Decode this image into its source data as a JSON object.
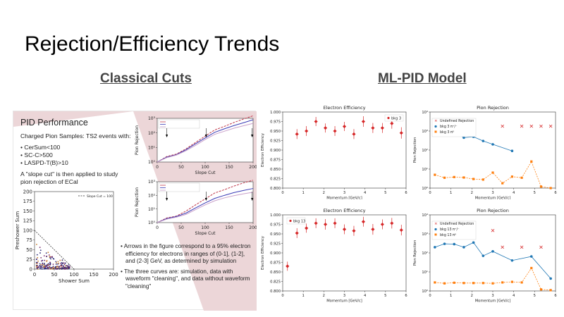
{
  "slide": {
    "title": "Rejection/Efficiency Trends",
    "left_heading": "Classical Cuts",
    "right_heading": "ML-PID Model"
  },
  "left": {
    "title": "PID Performance",
    "subtitle": "Charged Pion Samples: TS2 events with:",
    "cuts": [
      "CerSum<100",
      "SC-C>500",
      "LASPD-T(B)>10"
    ],
    "slope_text": "A \"slope cut\" is then applied to study pion rejection of ECal",
    "bullets": [
      "Arrows in the figure correspond to a 95% electron efficiency for electrons in ranges of (0-1], (1-2], and (2-3] GeV, as determined by simulation",
      "The three curves are: simulation, data with waveform \"cleaning\", and data without waveform \"cleaning\""
    ]
  },
  "chart_data": [
    {
      "type": "scatter",
      "xlabel": "Shower Sum",
      "ylabel": "Preshower Sum",
      "xticks": [
        "0",
        "50",
        "100",
        "150",
        "200"
      ],
      "yticks": [
        "0",
        "25",
        "50",
        "75",
        "100",
        "125",
        "150",
        "175",
        "200"
      ],
      "xlim": [
        0,
        200
      ],
      "ylim": [
        0,
        200
      ],
      "legend": [
        "Slope Cut = 100"
      ],
      "slope_cut": 100
    },
    {
      "type": "line",
      "xlabel": "Slope Cut",
      "ylabel": "Pion Rejection",
      "xticks": [
        "0",
        "50",
        "100",
        "150",
        "200"
      ],
      "yticks": [
        "10⁰",
        "10¹",
        "10²",
        "10³"
      ],
      "xlim": [
        0,
        200
      ],
      "scale": "log",
      "series": [
        {
          "color": "#c0394b",
          "style": "dashed",
          "x": [
            0,
            20,
            40,
            60,
            80,
            100,
            120,
            140,
            160,
            180,
            200
          ],
          "y": [
            1,
            2.4,
            3.5,
            8,
            22,
            60,
            160,
            280,
            520,
            900,
            1500
          ]
        },
        {
          "color": "#3a3ab5",
          "style": "solid",
          "x": [
            0,
            20,
            40,
            60,
            80,
            100,
            120,
            140,
            160,
            180,
            200
          ],
          "y": [
            1,
            2.2,
            3.2,
            7,
            18,
            45,
            110,
            190,
            320,
            500,
            800
          ]
        },
        {
          "color": "#c9a0c9",
          "style": "solid",
          "x": [
            0,
            20,
            40,
            60,
            80,
            100,
            120,
            140,
            160,
            180,
            200
          ],
          "y": [
            1,
            2.0,
            3.0,
            6,
            14,
            35,
            80,
            130,
            210,
            310,
            450
          ]
        }
      ]
    },
    {
      "type": "line",
      "xlabel": "Slope Cut",
      "ylabel": "Pion Rejection",
      "xticks": [
        "0",
        "50",
        "100",
        "150",
        "200"
      ],
      "yticks": [
        "10⁰",
        "10¹",
        "10²",
        "10³"
      ],
      "xlim": [
        0,
        200
      ],
      "scale": "log",
      "series": [
        {
          "color": "#c0394b",
          "style": "dashed",
          "x": [
            0,
            20,
            40,
            60,
            80,
            100,
            120,
            140,
            160,
            180,
            200
          ],
          "y": [
            1,
            2.2,
            3.0,
            7,
            20,
            55,
            150,
            260,
            480,
            820,
            1300
          ]
        },
        {
          "color": "#3a3ab5",
          "style": "solid",
          "x": [
            0,
            20,
            40,
            60,
            80,
            100,
            120,
            140,
            160,
            180,
            200
          ],
          "y": [
            1,
            2.0,
            2.8,
            5,
            12,
            28,
            60,
            100,
            160,
            230,
            320
          ]
        },
        {
          "color": "#c9a0c9",
          "style": "solid",
          "x": [
            0,
            20,
            40,
            60,
            80,
            100,
            120,
            140,
            160,
            180,
            200
          ],
          "y": [
            1,
            1.8,
            2.5,
            4,
            9,
            20,
            40,
            65,
            95,
            130,
            170
          ]
        }
      ]
    },
    {
      "type": "scatter",
      "title": "Electron Efficiency",
      "xlabel": "Momentum [GeV/c]",
      "ylabel": "Electron Efficiency",
      "legend": [
        "bkg 3"
      ],
      "xticks": [
        "0",
        "1",
        "2",
        "3",
        "4",
        "5",
        "6"
      ],
      "yticks": [
        "0.800",
        "0.825",
        "0.850",
        "0.875",
        "0.900",
        "0.925",
        "0.950",
        "0.975",
        "1.000"
      ],
      "xlim": [
        0,
        6.5
      ],
      "ylim": [
        0.8,
        1.0
      ],
      "x": [
        0.75,
        1.25,
        1.75,
        2.25,
        2.75,
        3.25,
        3.75,
        4.25,
        4.75,
        5.25,
        5.75,
        6.25
      ],
      "y": [
        0.942,
        0.95,
        0.975,
        0.958,
        0.95,
        0.962,
        0.942,
        0.975,
        0.958,
        0.958,
        0.97,
        0.945
      ],
      "err": [
        0.013,
        0.013,
        0.012,
        0.012,
        0.013,
        0.012,
        0.013,
        0.014,
        0.013,
        0.013,
        0.014,
        0.015
      ]
    },
    {
      "type": "scatter",
      "title": "Pion Rejection",
      "xlabel": "Momentum [GeV/c]",
      "ylabel": "Pion Rejection",
      "legend": [
        "Undefined Rejection",
        "bkg 3 π⁺/⁻",
        "bkg 3 π⁰"
      ],
      "xticks": [
        "0",
        "1",
        "2",
        "3",
        "4",
        "5",
        "6"
      ],
      "yticks": [
        "10⁰",
        "10¹",
        "10²",
        "10³",
        "10⁴"
      ],
      "xlim": [
        0,
        6.5
      ],
      "scale": "log",
      "series": [
        {
          "name": "bkg 3 π⁺/⁻",
          "x": [
            0.25,
            0.75,
            1.25,
            1.75,
            2.25,
            2.75,
            3.25,
            4.25
          ],
          "y": [
            2000,
            1900,
            900,
            450,
            500,
            300,
            200,
            90
          ]
        },
        {
          "name": "bkg 3 π⁰",
          "x": [
            0.25,
            0.75,
            1.25,
            1.75,
            2.25,
            2.75,
            3.25,
            3.75,
            4.25,
            4.75,
            5.25,
            5.75,
            6.25
          ],
          "y": [
            5,
            3.5,
            3.8,
            3.6,
            3,
            2.8,
            6.5,
            1.8,
            4,
            3.5,
            25,
            1.2,
            0.9
          ]
        },
        {
          "name": "Undefined Rejection",
          "x": [
            3.75,
            4.75,
            5.25,
            5.75,
            6.25
          ],
          "y": [
            1800,
            1800,
            1800,
            1800,
            1800
          ]
        }
      ]
    },
    {
      "type": "scatter",
      "title": "Electron Efficiency",
      "xlabel": "Momentum [GeV/c]",
      "ylabel": "Electron Efficiency",
      "legend": [
        "bkg 13"
      ],
      "xticks": [
        "0",
        "1",
        "2",
        "3",
        "4",
        "5",
        "6"
      ],
      "yticks": [
        "0.800",
        "0.825",
        "0.850",
        "0.875",
        "0.900",
        "0.925",
        "0.950",
        "0.975",
        "1.000"
      ],
      "xlim": [
        0,
        6.5
      ],
      "ylim": [
        0.8,
        1.0
      ],
      "x": [
        0.25,
        0.75,
        1.25,
        1.75,
        2.25,
        2.75,
        3.25,
        3.75,
        4.25,
        4.75,
        5.25,
        5.75,
        6.25
      ],
      "y": [
        0.865,
        0.952,
        0.965,
        0.978,
        0.975,
        0.978,
        0.962,
        0.958,
        0.982,
        0.962,
        0.975,
        0.978,
        0.96
      ],
      "err": [
        0.012,
        0.013,
        0.012,
        0.013,
        0.014,
        0.013,
        0.013,
        0.013,
        0.013,
        0.014,
        0.013,
        0.014,
        0.014
      ]
    },
    {
      "type": "scatter",
      "title": "Pion Rejection",
      "xlabel": "Momentum [GeV/c]",
      "ylabel": "Pion Rejection",
      "legend": [
        "Undefined Rejection",
        "bkg 13 π⁺/⁻",
        "bkg 13 π⁰"
      ],
      "xticks": [
        "0",
        "1",
        "2",
        "3",
        "4",
        "5",
        "6"
      ],
      "yticks": [
        "10⁰",
        "10¹",
        "10²",
        "10³",
        "10⁴"
      ],
      "xlim": [
        0,
        6.5
      ],
      "scale": "log",
      "series": [
        {
          "name": "bkg 13 π⁺/⁻",
          "x": [
            0.25,
            0.75,
            1.25,
            1.75,
            2.25,
            2.75,
            3.25,
            4.25,
            5.25,
            6.25
          ],
          "y": [
            200,
            300,
            290,
            200,
            350,
            70,
            120,
            40,
            65,
            4.5
          ]
        },
        {
          "name": "bkg 13 π⁰",
          "x": [
            0.25,
            0.75,
            1.25,
            1.75,
            2.25,
            2.75,
            3.25,
            3.75,
            4.25,
            4.75,
            5.25,
            5.75,
            6.25
          ],
          "y": [
            2.8,
            2.5,
            2.7,
            2.6,
            2.6,
            2.6,
            2.5,
            2.8,
            3.0,
            2.8,
            16,
            1.2,
            1.1
          ]
        },
        {
          "name": "Undefined Rejection",
          "x": [
            3.25,
            3.75,
            4.75,
            5.75
          ],
          "y": [
            1500,
            200,
            200,
            200
          ]
        }
      ]
    }
  ],
  "colors": {
    "red": "#d62728",
    "blue": "#1f77b4",
    "orange": "#ff7f0e",
    "pink_bg": "#ecd6d8"
  }
}
